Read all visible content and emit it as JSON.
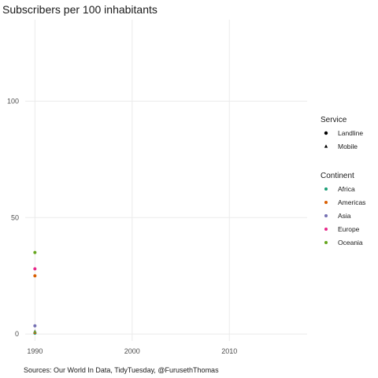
{
  "chart_data": {
    "type": "scatter",
    "title": "Subscribers per 100 inhabitants",
    "caption": "Sources: Our World In Data, TidyTuesday, @FurusethThomas",
    "xlabel": "",
    "ylabel": "",
    "xlim": [
      1989,
      2018
    ],
    "ylim": [
      -3,
      135
    ],
    "x_ticks": [
      1990,
      2000,
      2010
    ],
    "y_ticks": [
      0,
      50,
      100
    ],
    "grid": true,
    "legend_position": "right",
    "legends": [
      {
        "title": "Service",
        "entries": [
          {
            "label": "Landline",
            "shape": "circle"
          },
          {
            "label": "Mobile",
            "shape": "triangle"
          }
        ]
      },
      {
        "title": "Continent",
        "entries": [
          {
            "label": "Africa",
            "color": "#1b9e77"
          },
          {
            "label": "Americas",
            "color": "#d95f02"
          },
          {
            "label": "Asia",
            "color": "#7570b3"
          },
          {
            "label": "Europe",
            "color": "#e7298a"
          },
          {
            "label": "Oceania",
            "color": "#66a61e"
          }
        ]
      }
    ],
    "series": [
      {
        "name": "Africa",
        "service": "Landline",
        "color": "#1b9e77",
        "x": [
          1990
        ],
        "y": [
          0.4
        ]
      },
      {
        "name": "Americas",
        "service": "Landline",
        "color": "#d95f02",
        "x": [
          1990
        ],
        "y": [
          25
        ]
      },
      {
        "name": "Asia",
        "service": "Landline",
        "color": "#7570b3",
        "x": [
          1990
        ],
        "y": [
          3.5
        ]
      },
      {
        "name": "Europe",
        "service": "Landline",
        "color": "#e7298a",
        "x": [
          1990
        ],
        "y": [
          28
        ]
      },
      {
        "name": "Oceania",
        "service": "Landline",
        "color": "#66a61e",
        "x": [
          1990
        ],
        "y": [
          35
        ]
      },
      {
        "name": "Americas",
        "service": "Mobile",
        "color": "#d95f02",
        "x": [
          1990
        ],
        "y": [
          0.6
        ]
      },
      {
        "name": "Asia",
        "service": "Mobile",
        "color": "#7570b3",
        "x": [
          1990
        ],
        "y": [
          1.2
        ]
      },
      {
        "name": "Europe",
        "service": "Mobile",
        "color": "#e7298a",
        "x": [
          1990
        ],
        "y": [
          0.9
        ]
      },
      {
        "name": "Oceania",
        "service": "Mobile",
        "color": "#66a61e",
        "x": [
          1990
        ],
        "y": [
          1.0
        ]
      }
    ]
  }
}
